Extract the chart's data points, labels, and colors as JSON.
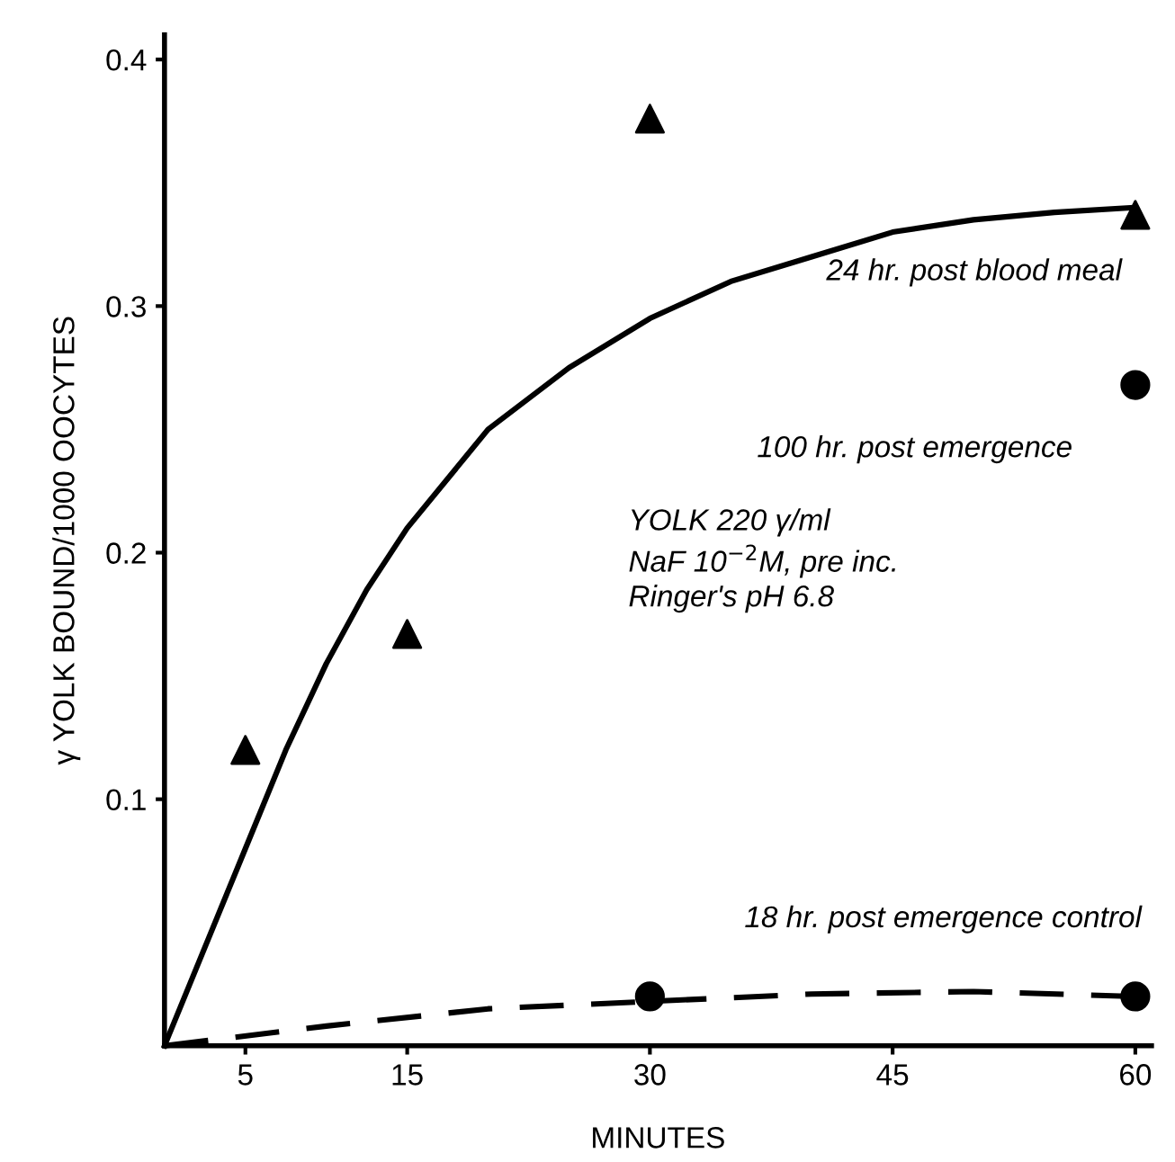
{
  "chart_data": {
    "type": "scatter",
    "xlabel": "MINUTES",
    "ylabel": "γ YOLK BOUND/1000 OOCYTES",
    "xlim": [
      0,
      61
    ],
    "ylim": [
      0,
      0.41
    ],
    "xticks": [
      5,
      15,
      30,
      45,
      60
    ],
    "yticks": [
      0.1,
      0.2,
      0.3,
      0.4
    ],
    "grid": false,
    "legend": false,
    "series": [
      {
        "type": "line",
        "color": "#000000",
        "line_style": "solid",
        "marker": "none",
        "x": [
          0,
          2.5,
          5,
          7.5,
          10,
          12.5,
          15,
          20,
          25,
          30,
          35,
          40,
          45,
          50,
          55,
          60
        ],
        "values": [
          0,
          0.04,
          0.08,
          0.12,
          0.155,
          0.185,
          0.21,
          0.25,
          0.275,
          0.295,
          0.31,
          0.32,
          0.33,
          0.335,
          0.338,
          0.34
        ]
      },
      {
        "type": "line",
        "color": "#000000",
        "line_style": "dashed",
        "marker": "none",
        "x": [
          0,
          10,
          20,
          30,
          40,
          50,
          60
        ],
        "values": [
          0,
          0.008,
          0.015,
          0.018,
          0.021,
          0.022,
          0.02
        ]
      },
      {
        "color": "#000000",
        "marker": "triangle",
        "x": [
          5,
          15,
          30,
          60
        ],
        "values": [
          0.12,
          0.167,
          0.376,
          0.337
        ]
      },
      {
        "color": "#000000",
        "marker": "circle",
        "x": [
          60
        ],
        "values": [
          0.268
        ]
      },
      {
        "color": "#000000",
        "marker": "circle",
        "x": [
          30,
          60
        ],
        "values": [
          0.02,
          0.02
        ]
      }
    ],
    "annotations": [
      "24 hr. post blood meal",
      "100 hr. post emergence",
      "YOLK 220 γ/ml\nNaF 10$^{−2}$M, pre inc.\nRinger's pH 6.8",
      "18 hr. post emergence control"
    ]
  }
}
